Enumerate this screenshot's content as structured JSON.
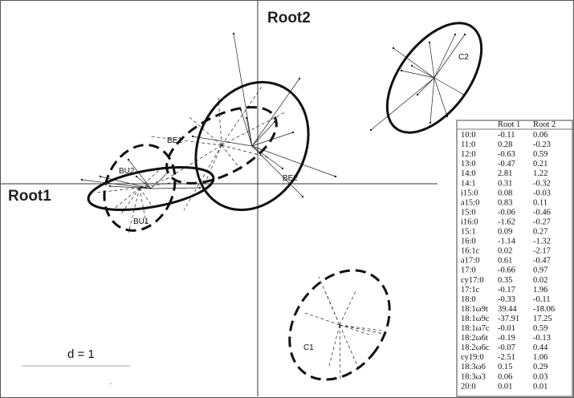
{
  "chart_data": {
    "type": "scatter",
    "title": "",
    "xlabel": "Root1",
    "ylabel": "Root2",
    "groups": [
      {
        "name": "BE1",
        "style": "dashed"
      },
      {
        "name": "BE2",
        "style": "solid"
      },
      {
        "name": "BU1",
        "style": "dashed"
      },
      {
        "name": "BU2",
        "style": "solid"
      },
      {
        "name": "C1",
        "style": "dashed"
      },
      {
        "name": "C2",
        "style": "solid"
      }
    ],
    "scale_label": "d = 1",
    "table": {
      "headers": [
        "",
        "Root 1",
        "Root 2"
      ],
      "rows": [
        [
          "10:0",
          "-0.11",
          "0.06"
        ],
        [
          "11:0",
          "0.28",
          "-0.23"
        ],
        [
          "12:0",
          "-0.63",
          "0.59"
        ],
        [
          "13:0",
          "-0.47",
          "0.21"
        ],
        [
          "14:0",
          "2.81",
          "1.22"
        ],
        [
          "14:1",
          "0.31",
          "-0.32"
        ],
        [
          "i15:0",
          "0.08",
          "-0.03"
        ],
        [
          "a15:0",
          "0.83",
          "0.11"
        ],
        [
          "15:0",
          "-0.06",
          "-0.46"
        ],
        [
          "i16:0",
          "-1.62",
          "-0.27"
        ],
        [
          "15:1",
          "0.09",
          "0.27"
        ],
        [
          "16:0",
          "-1.14",
          "-1.32"
        ],
        [
          "16:1c",
          "0.02",
          "-2.17"
        ],
        [
          "a17:0",
          "0.61",
          "-0.47"
        ],
        [
          "17:0",
          "-0.66",
          "0.97"
        ],
        [
          "cy17:0",
          "0.35",
          "0.02"
        ],
        [
          "17:1c",
          "-0.17",
          "1.96"
        ],
        [
          "18:0",
          "-0.33",
          "-0.11"
        ],
        [
          "18:1ω9t",
          "39.44",
          "-18.06"
        ],
        [
          "18:1ω9c",
          "-37.91",
          "17.25"
        ],
        [
          "18:1ω7c",
          "-0.01",
          "0.59"
        ],
        [
          "18:2ω6t",
          "-0.19",
          "-0.13"
        ],
        [
          "18:2ω6c",
          "-0.07",
          "0.44"
        ],
        [
          "cy19:0",
          "-2.51",
          "1.06"
        ],
        [
          "18:3ω6",
          "0.15",
          "0.29"
        ],
        [
          "18:3ω3",
          "0.06",
          "0.03"
        ],
        [
          "20:0",
          "0.01",
          "0.01"
        ]
      ]
    }
  }
}
